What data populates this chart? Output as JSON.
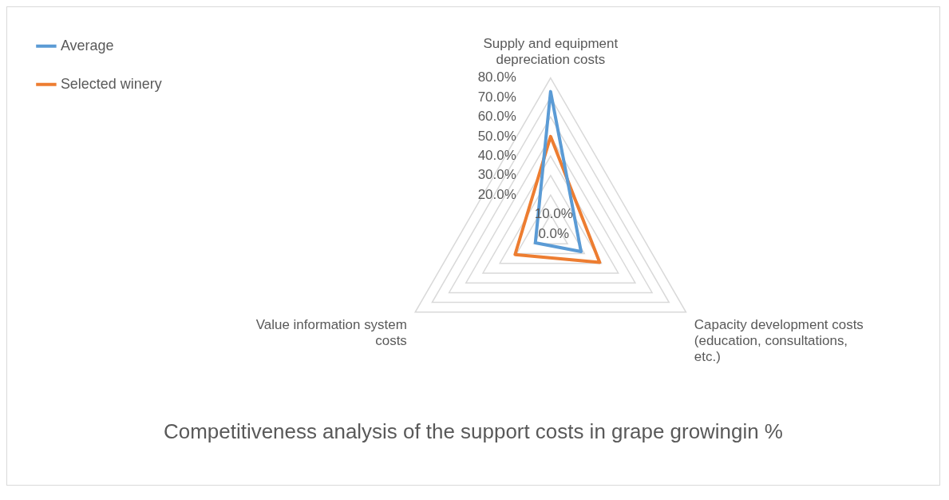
{
  "chart_data": {
    "type": "radar",
    "title": "Competitiveness analysis of the support costs in grape growingin %",
    "categories": [
      "Supply and equipment depreciation costs",
      "Capacity development costs (education, consultations, etc.)",
      "Value information system costs"
    ],
    "series": [
      {
        "name": "Average",
        "color": "#5b9bd5",
        "values": [
          73,
          18,
          9
        ]
      },
      {
        "name": "Selected winery",
        "color": "#ed7d31",
        "values": [
          50,
          29,
          21
        ]
      }
    ],
    "ylim": [
      0,
      80
    ],
    "yticks": [
      {
        "value": 0,
        "label": "0.0%"
      },
      {
        "value": 10,
        "label": "10.0%"
      },
      {
        "value": 20,
        "label": "20.0%"
      },
      {
        "value": 30,
        "label": "30.0%"
      },
      {
        "value": 40,
        "label": "40.0%"
      },
      {
        "value": 50,
        "label": "50.0%"
      },
      {
        "value": 60,
        "label": "60.0%"
      },
      {
        "value": 70,
        "label": "70.0%"
      },
      {
        "value": 80,
        "label": "80.0%"
      }
    ],
    "legend": "top left",
    "grid": true,
    "marker": "none"
  }
}
